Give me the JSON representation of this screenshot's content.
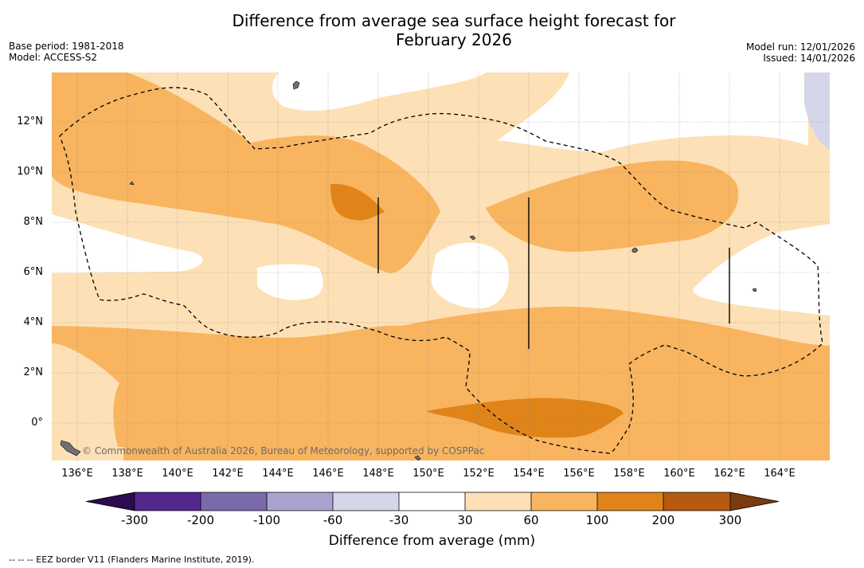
{
  "title_line1": "Difference from average sea surface height forecast for",
  "title_line2": "February 2026",
  "meta_left": {
    "base_period": "Base period: 1981-2018",
    "model": "Model: ACCESS-S2"
  },
  "meta_right": {
    "model_run": "Model run: 12/01/2026",
    "issued": "Issued: 14/01/2026"
  },
  "map": {
    "lat_labels": [
      "12°N",
      "10°N",
      "8°N",
      "6°N",
      "4°N",
      "2°N",
      "0°"
    ],
    "lon_labels": [
      "136°E",
      "138°E",
      "140°E",
      "142°E",
      "144°E",
      "146°E",
      "148°E",
      "150°E",
      "152°E",
      "154°E",
      "156°E",
      "158°E",
      "160°E",
      "162°E",
      "164°E"
    ],
    "credit": "© Commonwealth of Australia 2026, Bureau of Meteorology, supported by COSPPac"
  },
  "colorbar": {
    "title": "Difference from average (mm)",
    "ticks": [
      "-300",
      "-200",
      "-100",
      "-60",
      "-30",
      "30",
      "60",
      "100",
      "200",
      "300"
    ],
    "colors": {
      "below_min": "#2d0b4f",
      "c1": "#54278f",
      "c2": "#7a6aab",
      "c3": "#a9a4cf",
      "c4": "#d6d6ea",
      "c5": "#ffffff",
      "c6": "#fde0b5",
      "c7": "#f8b45f",
      "c8": "#e0841a",
      "c9": "#b55a0e",
      "above_max": "#7c3a10"
    }
  },
  "footnote": "--  --  -- EEZ border V11 (Flanders Marine Institute, 2019)."
}
